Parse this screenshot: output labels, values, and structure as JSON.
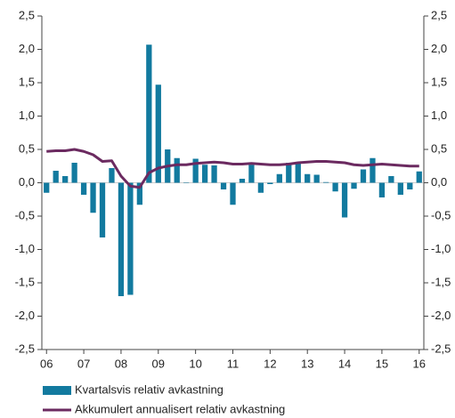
{
  "chart_data": {
    "type": "bar_line",
    "categories": [
      "06",
      null,
      null,
      null,
      "07",
      null,
      null,
      null,
      "08",
      null,
      null,
      null,
      "09",
      null,
      null,
      null,
      "10",
      null,
      null,
      null,
      "11",
      null,
      null,
      null,
      "12",
      null,
      null,
      null,
      "13",
      null,
      null,
      null,
      "14",
      null,
      null,
      null,
      "15",
      null,
      null,
      null,
      "16"
    ],
    "series": [
      {
        "name": "Kvartalsvis relativ avkastning",
        "type": "bar",
        "color": "#127a9f",
        "values": [
          -0.15,
          0.18,
          0.1,
          0.3,
          -0.18,
          -0.45,
          -0.82,
          0.22,
          -1.7,
          -1.68,
          -0.33,
          2.07,
          1.47,
          0.5,
          0.37,
          0.0,
          0.36,
          0.27,
          0.26,
          -0.1,
          -0.33,
          0.06,
          0.27,
          -0.15,
          -0.02,
          0.13,
          0.3,
          0.31,
          0.13,
          0.12,
          0.01,
          -0.13,
          -0.52,
          -0.09,
          0.2,
          0.37,
          -0.22,
          0.1,
          -0.18,
          -0.1,
          0.17
        ]
      },
      {
        "name": "Akkumulert annualisert relativ avkastning",
        "type": "line",
        "color": "#6b2a60",
        "values": [
          0.47,
          0.48,
          0.48,
          0.5,
          0.47,
          0.42,
          0.32,
          0.33,
          0.1,
          -0.05,
          -0.07,
          0.15,
          0.22,
          0.25,
          0.27,
          0.27,
          0.29,
          0.3,
          0.31,
          0.3,
          0.28,
          0.28,
          0.29,
          0.28,
          0.27,
          0.27,
          0.28,
          0.3,
          0.31,
          0.32,
          0.32,
          0.31,
          0.3,
          0.27,
          0.26,
          0.27,
          0.28,
          0.27,
          0.26,
          0.25,
          0.25
        ]
      }
    ],
    "ylim": [
      -2.5,
      2.5
    ],
    "yticks": [
      {
        "value": -2.5,
        "label": "-2,5"
      },
      {
        "value": -2,
        "label": "-2,0"
      },
      {
        "value": -1.5,
        "label": "-1,5"
      },
      {
        "value": -1,
        "label": "-1,0"
      },
      {
        "value": -0.5,
        "label": "-0,5"
      },
      {
        "value": 0,
        "label": "0,0"
      },
      {
        "value": 0.5,
        "label": "0,5"
      },
      {
        "value": 1,
        "label": "1,0"
      },
      {
        "value": 1.5,
        "label": "1,5"
      },
      {
        "value": 2,
        "label": "2,0"
      },
      {
        "value": 2.5,
        "label": "2,5"
      }
    ],
    "y2lim": [
      -2.5,
      2.5
    ],
    "y2ticks": [
      {
        "value": -2.5,
        "label": "-2,5"
      },
      {
        "value": -2,
        "label": "-2,0"
      },
      {
        "value": -1.5,
        "label": "-1,5"
      },
      {
        "value": -1,
        "label": "-1,0"
      },
      {
        "value": -0.5,
        "label": "-0,5"
      },
      {
        "value": 0,
        "label": "0,0"
      },
      {
        "value": 0.5,
        "label": "0,5"
      },
      {
        "value": 1,
        "label": "1,0"
      },
      {
        "value": 1.5,
        "label": "1,5"
      },
      {
        "value": 2,
        "label": "2,0"
      },
      {
        "value": 2.5,
        "label": "2,5"
      }
    ],
    "legend": "bottom"
  }
}
